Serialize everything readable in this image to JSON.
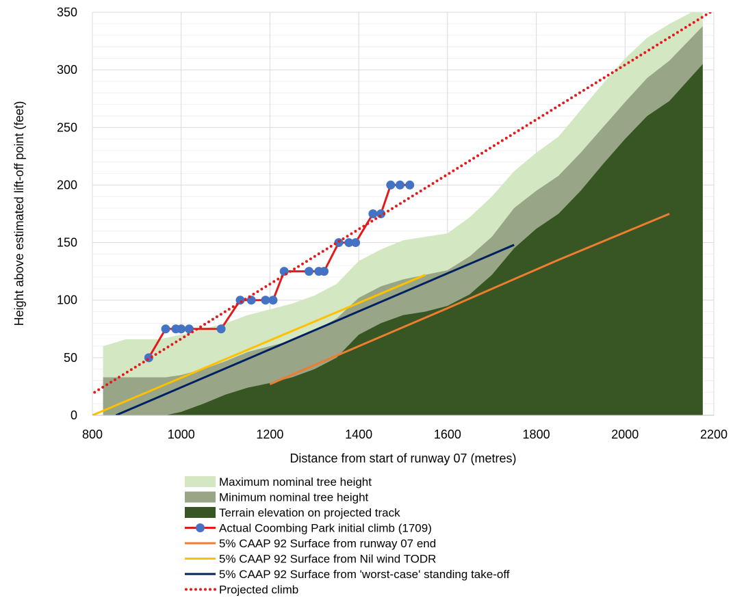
{
  "chart_data": {
    "type": "area",
    "xlabel": "Distance from start of runway 07 (metres)",
    "ylabel": "Height above estimated lift-off point (feet)",
    "xlim": [
      800,
      2200
    ],
    "ylim": [
      0,
      350
    ],
    "xticks": [
      800,
      1000,
      1200,
      1400,
      1600,
      1800,
      2000,
      2200
    ],
    "yticks": [
      0,
      50,
      100,
      150,
      200,
      250,
      300,
      350
    ],
    "grid": true,
    "legend_position": "bottom",
    "series": [
      {
        "name": "Maximum nominal tree height",
        "kind": "area",
        "color": "#d3e7c2",
        "points": [
          [
            824,
            60
          ],
          [
            850,
            63
          ],
          [
            875,
            66
          ],
          [
            950,
            66
          ],
          [
            1000,
            70
          ],
          [
            1050,
            75
          ],
          [
            1100,
            80
          ],
          [
            1150,
            87
          ],
          [
            1200,
            92
          ],
          [
            1250,
            97
          ],
          [
            1300,
            104
          ],
          [
            1350,
            114
          ],
          [
            1400,
            134
          ],
          [
            1450,
            144
          ],
          [
            1500,
            152
          ],
          [
            1550,
            155
          ],
          [
            1600,
            158
          ],
          [
            1650,
            172
          ],
          [
            1700,
            190
          ],
          [
            1750,
            212
          ],
          [
            1800,
            228
          ],
          [
            1850,
            242
          ],
          [
            1900,
            265
          ],
          [
            1950,
            288
          ],
          [
            2000,
            310
          ],
          [
            2050,
            328
          ],
          [
            2100,
            340
          ],
          [
            2175,
            355
          ]
        ]
      },
      {
        "name": "Minimum nominal tree height",
        "kind": "area",
        "color": "#98a587",
        "points": [
          [
            824,
            33
          ],
          [
            900,
            33
          ],
          [
            965,
            33
          ],
          [
            1000,
            35
          ],
          [
            1050,
            40
          ],
          [
            1100,
            47
          ],
          [
            1150,
            55
          ],
          [
            1200,
            60
          ],
          [
            1250,
            65
          ],
          [
            1300,
            73
          ],
          [
            1350,
            84
          ],
          [
            1400,
            102
          ],
          [
            1450,
            112
          ],
          [
            1500,
            118
          ],
          [
            1550,
            122
          ],
          [
            1600,
            126
          ],
          [
            1650,
            138
          ],
          [
            1700,
            155
          ],
          [
            1750,
            180
          ],
          [
            1800,
            195
          ],
          [
            1850,
            208
          ],
          [
            1900,
            228
          ],
          [
            1950,
            250
          ],
          [
            2000,
            272
          ],
          [
            2050,
            293
          ],
          [
            2100,
            308
          ],
          [
            2175,
            338
          ]
        ]
      },
      {
        "name": "Terrain elevation on projected track",
        "kind": "area",
        "color": "#375623",
        "points": [
          [
            965,
            0
          ],
          [
            1000,
            3
          ],
          [
            1050,
            10
          ],
          [
            1100,
            18
          ],
          [
            1150,
            24
          ],
          [
            1200,
            28
          ],
          [
            1250,
            33
          ],
          [
            1300,
            40
          ],
          [
            1350,
            50
          ],
          [
            1400,
            70
          ],
          [
            1450,
            80
          ],
          [
            1500,
            87
          ],
          [
            1550,
            90
          ],
          [
            1600,
            95
          ],
          [
            1650,
            105
          ],
          [
            1700,
            122
          ],
          [
            1750,
            145
          ],
          [
            1800,
            162
          ],
          [
            1850,
            175
          ],
          [
            1900,
            195
          ],
          [
            1950,
            218
          ],
          [
            2000,
            240
          ],
          [
            2050,
            260
          ],
          [
            2100,
            273
          ],
          [
            2175,
            305
          ]
        ]
      },
      {
        "name": "Actual Coombing Park initial climb (1709)",
        "kind": "line-marker",
        "color": "#e31a1c",
        "marker_color": "#4472c4",
        "points": [
          [
            927,
            50
          ],
          [
            965,
            75
          ],
          [
            988,
            75
          ],
          [
            1000,
            75
          ],
          [
            1018,
            75
          ],
          [
            1090,
            75
          ],
          [
            1133,
            100
          ],
          [
            1158,
            100
          ],
          [
            1190,
            100
          ],
          [
            1207,
            100
          ],
          [
            1232,
            125
          ],
          [
            1288,
            125
          ],
          [
            1310,
            125
          ],
          [
            1322,
            125
          ],
          [
            1355,
            150
          ],
          [
            1378,
            150
          ],
          [
            1393,
            150
          ],
          [
            1432,
            175
          ],
          [
            1450,
            175
          ],
          [
            1472,
            200
          ],
          [
            1493,
            200
          ],
          [
            1515,
            200
          ]
        ]
      },
      {
        "name": "5% CAAP 92 Surface from runway 07 end",
        "kind": "line",
        "color": "#ed7d31",
        "points": [
          [
            1200,
            27
          ],
          [
            1400,
            60
          ],
          [
            1600,
            93
          ],
          [
            1850,
            135
          ],
          [
            2100,
            175
          ]
        ]
      },
      {
        "name": "5% CAAP 92 Surface from Nil wind TODR",
        "kind": "line",
        "color": "#ffc000",
        "points": [
          [
            800,
            0
          ],
          [
            1550,
            122
          ]
        ]
      },
      {
        "name": "5% CAAP 92 Surface from 'worst-case' standing take-off",
        "kind": "line",
        "color": "#002060",
        "points": [
          [
            853,
            0
          ],
          [
            1750,
            148
          ]
        ]
      },
      {
        "name": "Projected climb",
        "kind": "dotted",
        "color": "#e31a1c",
        "points": [
          [
            805,
            20
          ],
          [
            2200,
            352
          ]
        ]
      }
    ]
  }
}
